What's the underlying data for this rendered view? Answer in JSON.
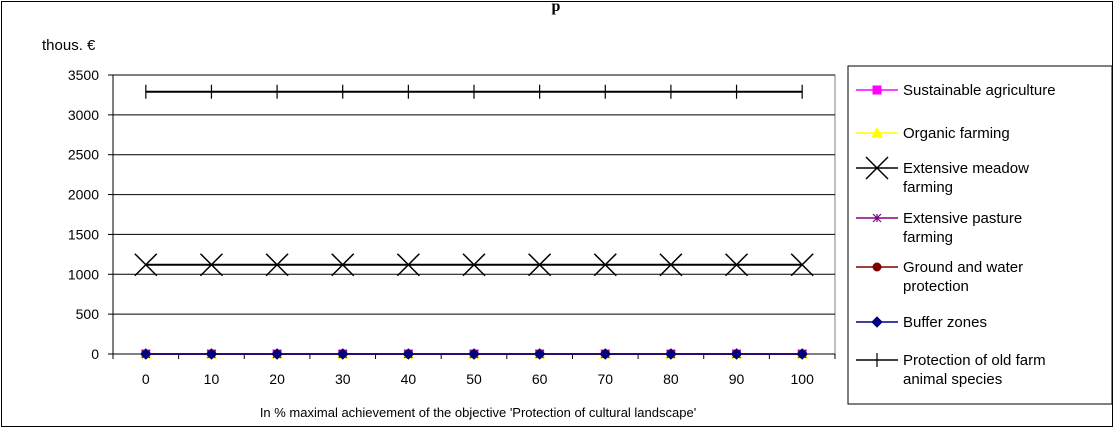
{
  "chart_data": {
    "type": "line",
    "title_fragment": "p",
    "ylabel": "thous. €",
    "xlabel": "In %  maximal achievement of the objective 'Protection of cultural landscape'",
    "x": [
      0,
      10,
      20,
      30,
      40,
      50,
      60,
      70,
      80,
      90,
      100
    ],
    "ylim": [
      0,
      3500
    ],
    "yticks": [
      0,
      500,
      1000,
      1500,
      2000,
      2500,
      3000,
      3500
    ],
    "grid": "horizontal",
    "legend_position": "right",
    "series": [
      {
        "name": "Sustainable agriculture",
        "color": "#ff00ff",
        "marker": "square",
        "values": [
          0,
          0,
          0,
          0,
          0,
          0,
          0,
          0,
          0,
          0,
          0
        ]
      },
      {
        "name": "Organic farming",
        "color": "#ffff00",
        "marker": "triangle",
        "values": [
          0,
          0,
          0,
          0,
          0,
          0,
          0,
          0,
          0,
          0,
          0
        ]
      },
      {
        "name": "Extensive meadow farming",
        "color": "#000000",
        "marker": "x",
        "values": [
          1120,
          1120,
          1120,
          1120,
          1120,
          1120,
          1120,
          1120,
          1120,
          1120,
          1120
        ]
      },
      {
        "name": "Extensive pasture farming",
        "color": "#800080",
        "marker": "star",
        "values": [
          0,
          0,
          0,
          0,
          0,
          0,
          0,
          0,
          0,
          0,
          0
        ]
      },
      {
        "name": "Ground and water protection",
        "color": "#800000",
        "marker": "circle",
        "values": [
          0,
          0,
          0,
          0,
          0,
          0,
          0,
          0,
          0,
          0,
          0
        ]
      },
      {
        "name": "Buffer zones",
        "color": "#000080",
        "marker": "diamond",
        "values": [
          0,
          0,
          0,
          0,
          0,
          0,
          0,
          0,
          0,
          0,
          0
        ]
      },
      {
        "name": "Protection of old farm animal species",
        "color": "#000000",
        "marker": "plus",
        "values": [
          3290,
          3290,
          3290,
          3290,
          3290,
          3290,
          3290,
          3290,
          3290,
          3290,
          3290
        ]
      }
    ]
  }
}
